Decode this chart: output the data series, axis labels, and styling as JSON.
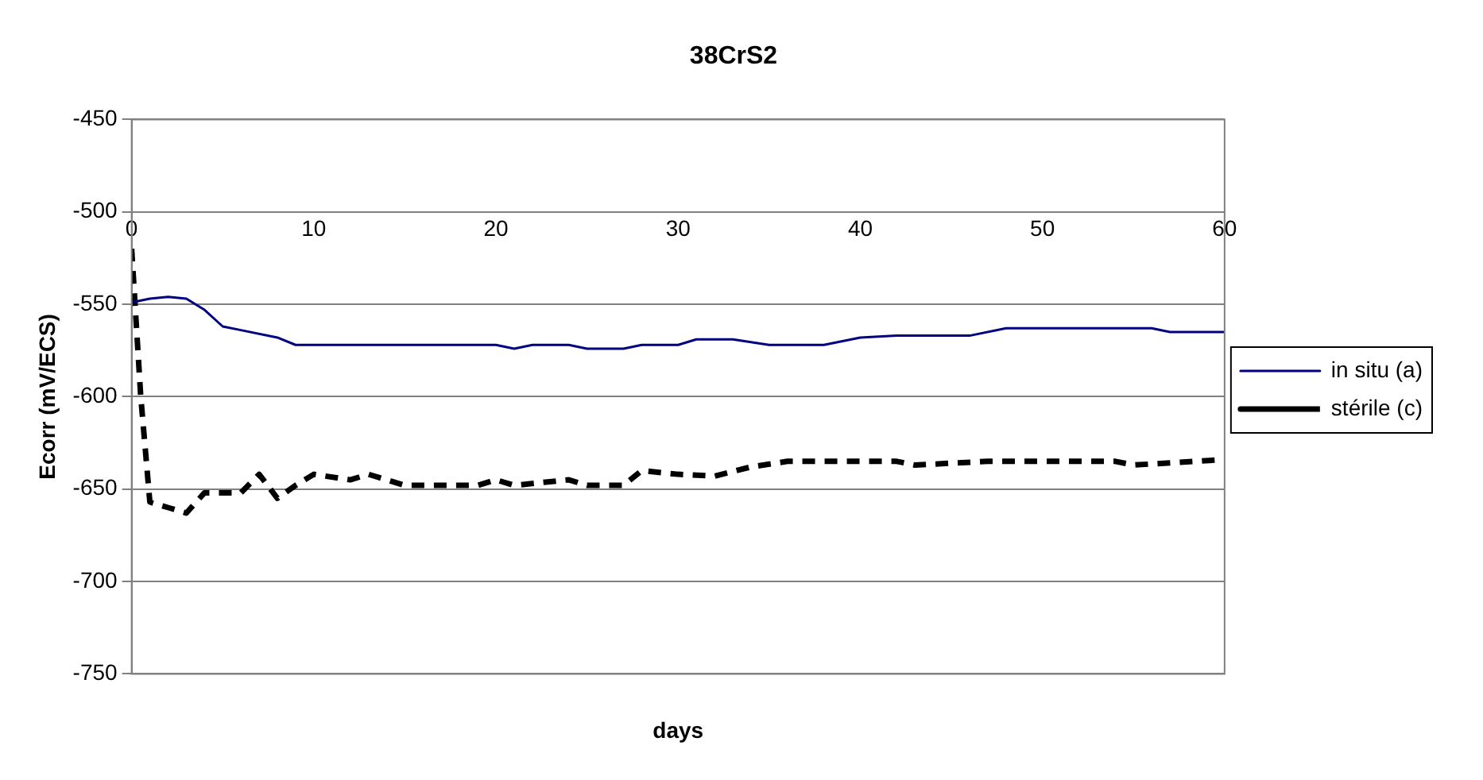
{
  "chart_data": {
    "type": "line",
    "title": "38CrS2",
    "xlabel": "days",
    "ylabel": "Ecorr (mV/ECS)",
    "xlim": [
      0,
      60
    ],
    "xticks": [
      0,
      10,
      20,
      30,
      40,
      50,
      60
    ],
    "ylim": [
      -750,
      -450
    ],
    "yticks": [
      -750,
      -700,
      -650,
      -600,
      -550,
      -500,
      -450
    ],
    "grid": "y",
    "legend": "right",
    "marker": "none",
    "series": [
      {
        "name": "in situ (a)",
        "color": "#000080",
        "line_style": "solid",
        "x": [
          0,
          1,
          2,
          3,
          4,
          5,
          6,
          8,
          9,
          20,
          21,
          22,
          24,
          25,
          27,
          28,
          30,
          31,
          33,
          35,
          38,
          40,
          42,
          46,
          48,
          56,
          57,
          60
        ],
        "values": [
          -549,
          -547,
          -546,
          -547,
          -553,
          -562,
          -564,
          -568,
          -572,
          -572,
          -574,
          -572,
          -572,
          -574,
          -574,
          -572,
          -572,
          -569,
          -569,
          -572,
          -572,
          -568,
          -567,
          -567,
          -563,
          -563,
          -565,
          -565
        ]
      },
      {
        "name": "stérile (c)",
        "color": "#000000",
        "line_style": "dashed",
        "x": [
          0,
          0.5,
          1,
          2,
          3,
          4,
          6,
          7,
          8,
          9,
          10,
          12,
          13,
          15,
          19,
          20,
          21,
          24,
          25,
          27,
          28,
          30,
          32,
          34,
          36,
          42,
          43,
          47,
          54,
          55,
          60
        ],
        "values": [
          -520,
          -600,
          -657,
          -660,
          -663,
          -652,
          -652,
          -642,
          -655,
          -648,
          -642,
          -645,
          -642,
          -648,
          -648,
          -645,
          -648,
          -645,
          -648,
          -648,
          -640,
          -642,
          -643,
          -638,
          -635,
          -635,
          -637,
          -635,
          -635,
          -637,
          -634
        ]
      }
    ]
  }
}
